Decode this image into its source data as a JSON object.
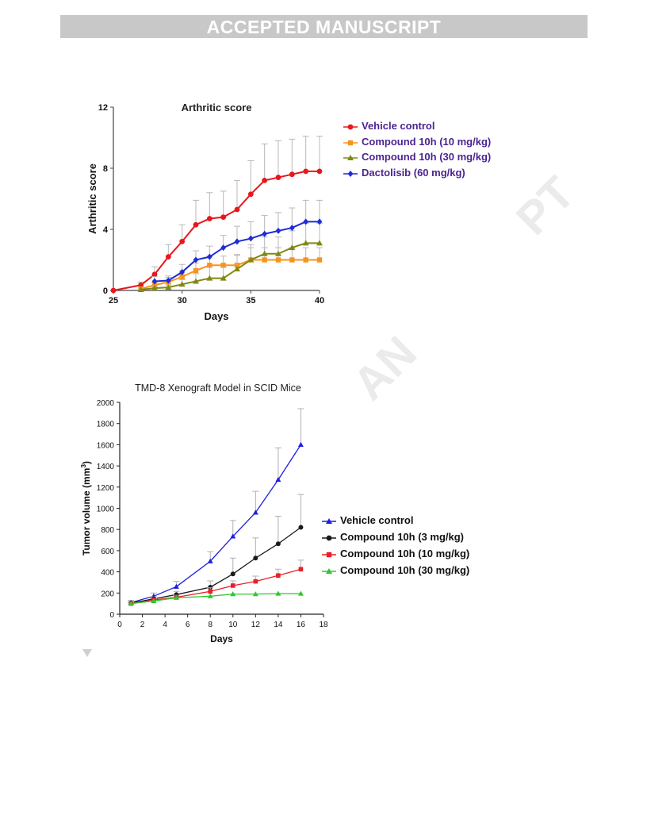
{
  "header": {
    "banner_text": "ACCEPTED MANUSCRIPT"
  },
  "watermark": {
    "fragment_1": "PT",
    "fragment_2": "AN"
  },
  "chart_data": [
    {
      "type": "line",
      "title": "Arthritic score",
      "xlabel": "Days",
      "ylabel": "Arthritic score",
      "xlim": [
        25,
        40
      ],
      "ylim": [
        0,
        12
      ],
      "x_ticks": [
        25,
        30,
        35,
        40
      ],
      "y_ticks": [
        0,
        4,
        8,
        12
      ],
      "grid": false,
      "legend_position": "top-right outside",
      "series": [
        {
          "name": "Vehicle control",
          "color": "#e8171d",
          "marker": "circle",
          "x": [
            25,
            27,
            28,
            29,
            30,
            31,
            32,
            33,
            34,
            35,
            36,
            37,
            38,
            39,
            40
          ],
          "y": [
            0,
            0.35,
            1.05,
            2.2,
            3.2,
            4.3,
            4.7,
            4.8,
            5.3,
            6.3,
            7.2,
            7.4,
            7.6,
            7.8,
            7.8
          ],
          "error": [
            0,
            0.2,
            0.5,
            0.8,
            1.1,
            1.6,
            1.7,
            1.7,
            1.9,
            2.2,
            2.4,
            2.4,
            2.3,
            2.3,
            2.3
          ]
        },
        {
          "name": "Compound 10h (10 mg/kg)",
          "color": "#f7941d",
          "marker": "square",
          "x": [
            27,
            28,
            29,
            30,
            31,
            32,
            33,
            34,
            35,
            36,
            37,
            38,
            39,
            40
          ],
          "y": [
            0.1,
            0.35,
            0.55,
            0.9,
            1.3,
            1.65,
            1.65,
            1.65,
            2.0,
            2.0,
            2.0,
            2.0,
            2.0,
            2.0
          ],
          "error": [
            0,
            0.2,
            0.3,
            0.4,
            0.5,
            0.6,
            0.6,
            0.7,
            0.8,
            0.8,
            0.8,
            0.8,
            0.8,
            0.8
          ]
        },
        {
          "name": "Compound 10h (30 mg/kg)",
          "color": "#808a13",
          "marker": "triangle",
          "x": [
            27,
            28,
            29,
            30,
            31,
            32,
            33,
            34,
            35,
            36,
            37,
            38,
            39,
            40
          ],
          "y": [
            0.05,
            0.15,
            0.2,
            0.4,
            0.6,
            0.8,
            0.8,
            1.4,
            2.0,
            2.4,
            2.4,
            2.8,
            3.1,
            3.1
          ],
          "error": [
            0,
            0.1,
            0.15,
            0.3,
            0.5,
            0.7,
            0.7,
            0.9,
            1.0,
            1.1,
            1.1,
            1.1,
            1.3,
            1.3
          ]
        },
        {
          "name": "Dactolisib (60 mg/kg)",
          "color": "#1f2bd6",
          "marker": "diamond",
          "x": [
            28,
            29,
            30,
            31,
            32,
            33,
            34,
            35,
            36,
            37,
            38,
            39,
            40
          ],
          "y": [
            0.6,
            0.65,
            1.2,
            2.0,
            2.2,
            2.8,
            3.2,
            3.4,
            3.7,
            3.9,
            4.1,
            4.5,
            4.5
          ],
          "error": [
            0.3,
            0.3,
            0.5,
            0.6,
            0.7,
            0.8,
            1.0,
            1.1,
            1.2,
            1.2,
            1.3,
            1.4,
            1.4
          ]
        }
      ]
    },
    {
      "type": "line",
      "title": "TMD-8 Xenograft Model in SCID  Mice",
      "xlabel": "Days",
      "ylabel_main": "Tumor volume (mm",
      "ylabel_sup": "3",
      "ylabel_end": ")",
      "xlim": [
        0,
        18
      ],
      "ylim": [
        0,
        2000
      ],
      "x_ticks": [
        0,
        2,
        4,
        6,
        8,
        10,
        12,
        14,
        16,
        18
      ],
      "y_ticks": [
        0,
        200,
        400,
        600,
        800,
        1000,
        1200,
        1400,
        1600,
        1800,
        2000
      ],
      "grid": false,
      "legend_position": "right",
      "series": [
        {
          "name": "Vehicle control",
          "color": "#1e1ee0",
          "marker": "triangle",
          "x": [
            1,
            3,
            5,
            8,
            10,
            12,
            14,
            16
          ],
          "y": [
            110,
            170,
            260,
            500,
            735,
            960,
            1270,
            1600
          ],
          "error": [
            20,
            30,
            50,
            90,
            150,
            200,
            300,
            340
          ]
        },
        {
          "name": "Compound 10h (3 mg/kg)",
          "color": "#1a1a1a",
          "marker": "circle",
          "x": [
            1,
            3,
            5,
            8,
            10,
            12,
            14,
            16
          ],
          "y": [
            105,
            145,
            185,
            255,
            380,
            530,
            665,
            820
          ],
          "error": [
            15,
            20,
            30,
            60,
            150,
            190,
            260,
            310
          ]
        },
        {
          "name": "Compound 10h (10 mg/kg)",
          "color": "#e8202a",
          "marker": "square",
          "x": [
            1,
            3,
            5,
            8,
            10,
            12,
            14,
            16
          ],
          "y": [
            100,
            135,
            160,
            215,
            270,
            310,
            365,
            425
          ],
          "error": [
            10,
            15,
            20,
            35,
            45,
            50,
            60,
            85
          ]
        },
        {
          "name": "Compound 10h (30 mg/kg)",
          "color": "#2ec82e",
          "marker": "triangle",
          "x": [
            1,
            3,
            5,
            8,
            10,
            12,
            14,
            16
          ],
          "y": [
            100,
            125,
            155,
            170,
            190,
            190,
            195,
            195
          ],
          "error": [
            0,
            0,
            0,
            0,
            0,
            0,
            0,
            0
          ]
        }
      ]
    }
  ]
}
